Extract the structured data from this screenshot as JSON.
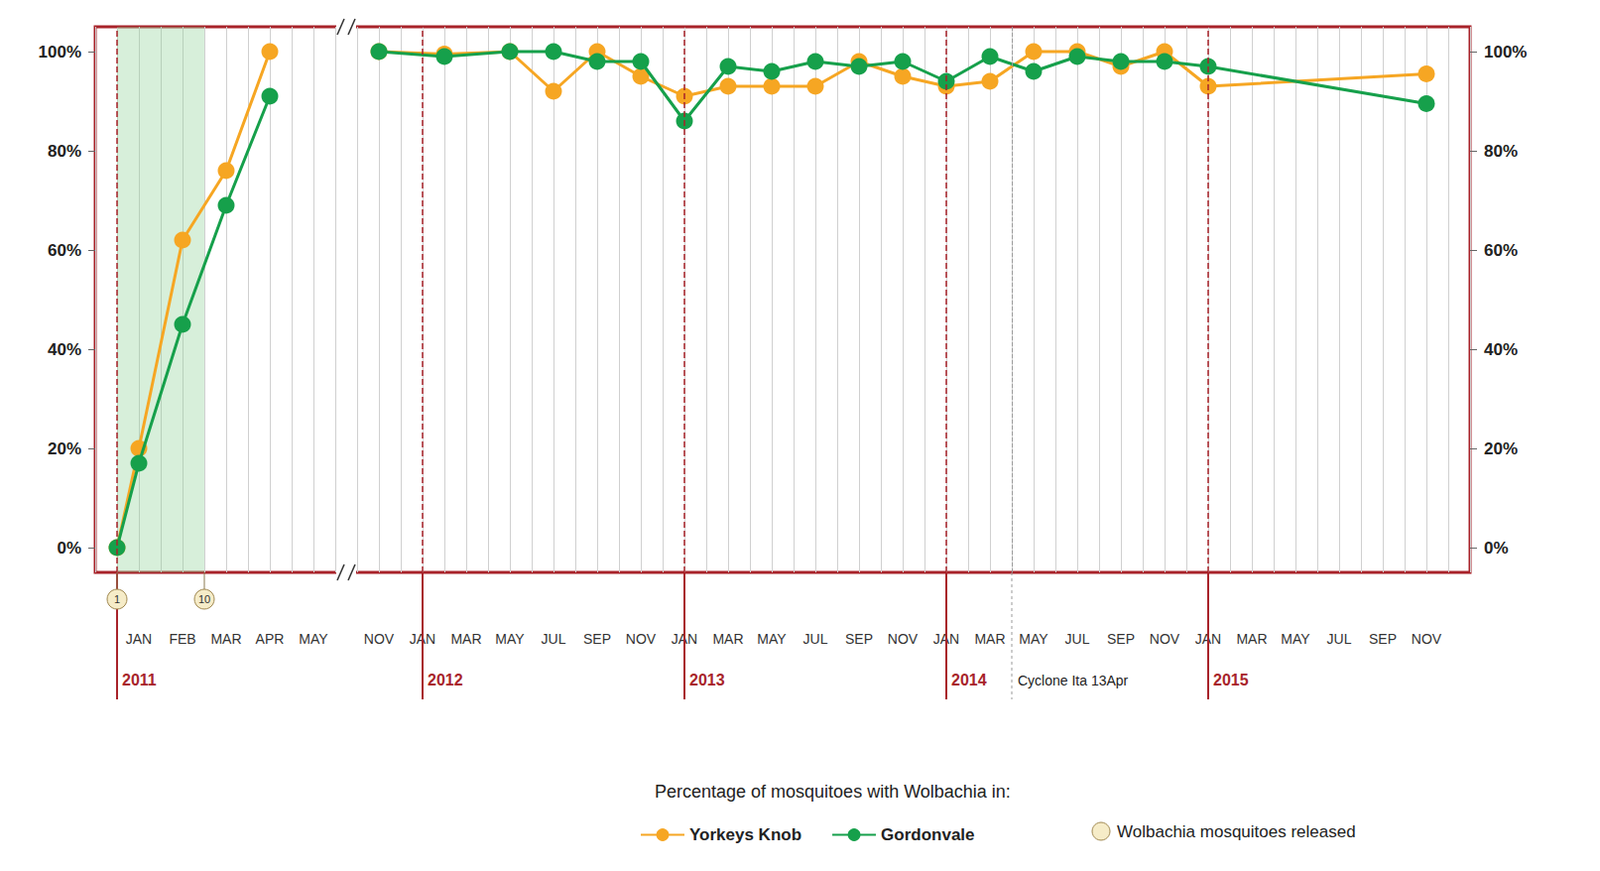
{
  "chart_data": {
    "type": "line",
    "categories": [
      null,
      null,
      "JAN",
      null,
      "FEB",
      null,
      "MAR",
      null,
      "APR",
      null,
      "MAY",
      null,
      null,
      "NOV",
      null,
      "JAN",
      null,
      "MAR",
      null,
      "MAY",
      null,
      "JUL",
      null,
      "SEP",
      null,
      "NOV",
      null,
      "JAN",
      null,
      "MAR",
      null,
      "MAY",
      null,
      "JUL",
      null,
      "SEP",
      null,
      "NOV",
      null,
      "JAN",
      null,
      "MAR",
      null,
      "MAY",
      null,
      "JUL",
      null,
      "SEP",
      null,
      "NOV",
      null,
      "JAN",
      null,
      "MAR",
      null,
      "MAY",
      null,
      "JUL",
      null,
      "SEP",
      null,
      "NOV",
      null,
      null
    ],
    "year_labels": [
      null,
      "2011",
      null,
      null,
      null,
      null,
      null,
      null,
      null,
      null,
      null,
      null,
      null,
      null,
      null,
      "2012",
      null,
      null,
      null,
      null,
      null,
      null,
      null,
      null,
      null,
      null,
      null,
      "2013",
      null,
      null,
      null,
      null,
      null,
      null,
      null,
      null,
      null,
      null,
      null,
      "2014",
      null,
      null,
      null,
      null,
      null,
      null,
      null,
      null,
      null,
      null,
      null,
      "2015",
      null,
      null,
      null,
      null,
      null,
      null,
      null,
      null,
      null,
      null,
      null,
      null
    ],
    "series": [
      {
        "name": "Yorkeys Knob",
        "color": "#f6a623",
        "marker": "circle",
        "values": [
          null,
          0,
          20,
          null,
          62,
          null,
          76,
          null,
          100,
          null,
          null,
          null,
          null,
          100,
          null,
          null,
          99.5,
          null,
          null,
          100,
          null,
          92,
          null,
          100,
          null,
          95,
          null,
          91,
          null,
          93,
          null,
          93,
          null,
          93,
          null,
          98,
          null,
          95,
          null,
          93,
          null,
          94,
          null,
          100,
          null,
          100,
          null,
          97,
          null,
          100,
          null,
          93,
          null,
          null,
          null,
          null,
          null,
          null,
          null,
          null,
          null,
          95.5,
          null,
          null
        ]
      },
      {
        "name": "Gordonvale",
        "color": "#16a04b",
        "marker": "circle",
        "values": [
          null,
          0,
          17,
          null,
          45,
          null,
          69,
          null,
          91,
          null,
          null,
          null,
          null,
          100,
          null,
          null,
          99,
          null,
          null,
          100,
          null,
          100,
          null,
          98,
          null,
          98,
          null,
          86,
          null,
          97,
          null,
          96,
          null,
          98,
          null,
          97,
          null,
          98,
          null,
          94,
          null,
          99,
          null,
          96,
          null,
          99,
          null,
          98,
          null,
          98,
          null,
          97,
          null,
          null,
          null,
          null,
          null,
          null,
          null,
          null,
          null,
          89.5,
          null,
          null
        ]
      }
    ],
    "ylim": [
      -5,
      105
    ],
    "yticks": [
      {
        "value": 0,
        "label": "0%"
      },
      {
        "value": 20,
        "label": "20%"
      },
      {
        "value": 40,
        "label": "40%"
      },
      {
        "value": 60,
        "label": "60%"
      },
      {
        "value": 80,
        "label": "80%"
      },
      {
        "value": 100,
        "label": "100%"
      }
    ],
    "grid": "x",
    "legend": "bottom",
    "legend_title": "Percentage of mosquitoes with Wolbachia in:",
    "releases": {
      "label": "Wolbachia mosquitoes released",
      "markers": [
        {
          "release": 1,
          "category_index": 1
        },
        {
          "release": 10,
          "category_index": 5
        }
      ]
    },
    "annotations": [
      {
        "text": "Cyclone Ita 13Apr",
        "category_index": 42
      }
    ]
  }
}
